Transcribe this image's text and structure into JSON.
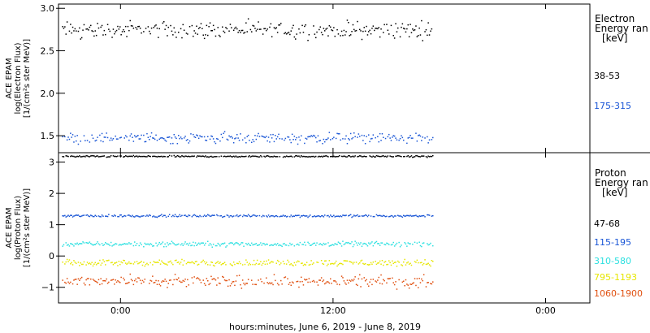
{
  "chart_data": [
    {
      "type": "scatter",
      "panel": "electron",
      "ylabel_lines": [
        "ACE EPAM",
        "log(Electron Flux)",
        "[1/(cm²s ster MeV)]"
      ],
      "ylim": [
        1.3,
        3.05
      ],
      "yticks": [
        1.5,
        2.0,
        2.5,
        3.0
      ],
      "ytick_labels": [
        "1.5",
        "2.0",
        "2.5",
        "3.0"
      ],
      "legend_title": [
        "Electron",
        "Energy ran",
        "[keV]"
      ],
      "series": [
        {
          "name": "38-53",
          "color": "#000000",
          "mean": 2.75,
          "spread": 0.08,
          "x_start": -3.3,
          "x_end": 17.6
        },
        {
          "name": "175-315",
          "color": "#1a56d6",
          "mean": 1.48,
          "spread": 0.05,
          "x_start": -3.3,
          "x_end": 17.6
        }
      ]
    },
    {
      "type": "scatter",
      "panel": "proton",
      "ylabel_lines": [
        "ACE EPAM",
        "log(Proton Flux)",
        "[1/(cm²s ster MeV)]"
      ],
      "ylim": [
        -1.5,
        3.3
      ],
      "yticks": [
        -1,
        0,
        1,
        2,
        3
      ],
      "ytick_labels": [
        "−1",
        "0",
        "1",
        "2",
        "3"
      ],
      "legend_title": [
        "Proton",
        "Energy ran",
        "[keV]"
      ],
      "series": [
        {
          "name": "47-68",
          "color": "#000000",
          "mean": 3.2,
          "spread": 0.02,
          "x_start": -3.3,
          "x_end": 17.6
        },
        {
          "name": "115-195",
          "color": "#1a56d6",
          "mean": 1.3,
          "spread": 0.03,
          "x_start": -3.3,
          "x_end": 17.6
        },
        {
          "name": "310-580",
          "color": "#2ce0e0",
          "mean": 0.4,
          "spread": 0.06,
          "x_start": -3.3,
          "x_end": 17.6
        },
        {
          "name": "795-1193",
          "color": "#e6e600",
          "mean": -0.2,
          "spread": 0.08,
          "x_start": -3.3,
          "x_end": 17.6
        },
        {
          "name": "1060-1900",
          "color": "#e05010",
          "mean": -0.8,
          "spread": 0.15,
          "x_start": -3.3,
          "x_end": 17.6
        }
      ]
    }
  ],
  "x_axis": {
    "xlim": [
      -3.5,
      26.5
    ],
    "ticks": [
      0,
      12,
      24
    ],
    "tick_labels": [
      "0:00",
      "12:00",
      "0:00"
    ],
    "label": "hours:minutes, June  6, 2019 - June  8, 2019"
  }
}
